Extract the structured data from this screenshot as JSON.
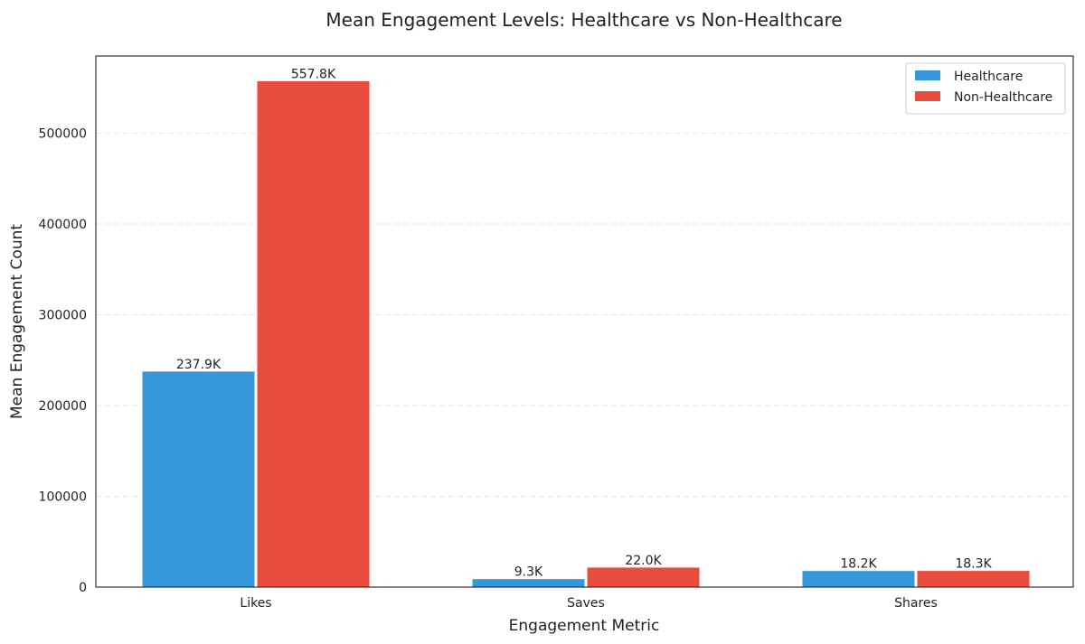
{
  "chart_data": {
    "type": "bar",
    "title": "Mean Engagement Levels: Healthcare vs Non-Healthcare",
    "xlabel": "Engagement Metric",
    "ylabel": "Mean Engagement Count",
    "categories": [
      "Likes",
      "Saves",
      "Shares"
    ],
    "series": [
      {
        "name": "Healthcare",
        "color": "#3498db",
        "values": [
          237900,
          9300,
          18200
        ],
        "labels": [
          "237.9K",
          "9.3K",
          "18.2K"
        ]
      },
      {
        "name": "Non-Healthcare",
        "color": "#e74c3c",
        "values": [
          557800,
          22000,
          18300
        ],
        "labels": [
          "557.8K",
          "22.0K",
          "18.3K"
        ]
      }
    ],
    "ylim": [
      0,
      585000
    ],
    "yticks": [
      0,
      100000,
      200000,
      300000,
      400000,
      500000
    ],
    "ytick_labels": [
      "0",
      "100000",
      "200000",
      "300000",
      "400000",
      "500000"
    ],
    "grid": true,
    "legend_position": "top-right"
  }
}
